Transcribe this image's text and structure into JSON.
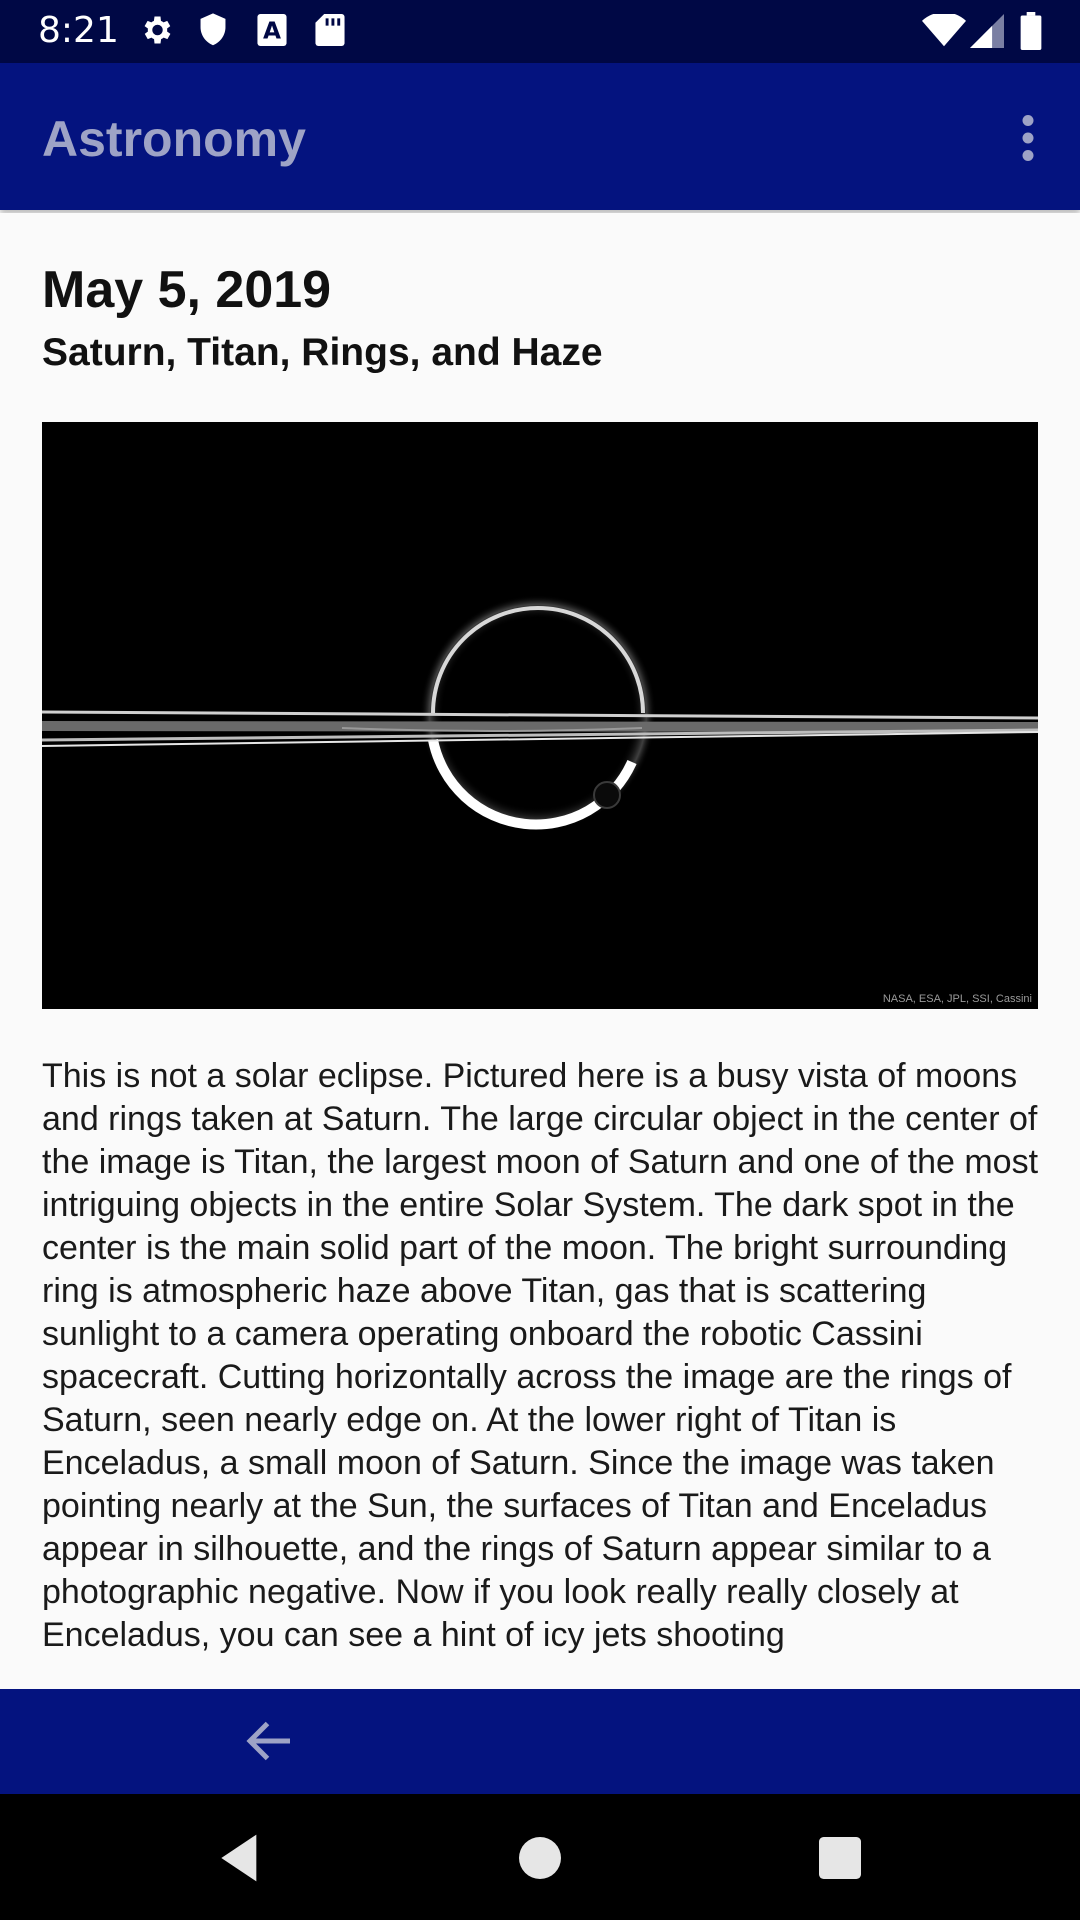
{
  "status_bar": {
    "time": "8:21",
    "left_icons": [
      "gear-icon",
      "shield-icon",
      "font-a-icon",
      "sd-card-icon"
    ],
    "right_icons": [
      "wifi-icon",
      "cellular-signal-icon",
      "battery-icon"
    ]
  },
  "app_bar": {
    "title": "Astronomy",
    "menu_icon": "more-vert-icon",
    "colors": {
      "background": "#04137f",
      "title": "#9ea3c6"
    }
  },
  "entry": {
    "date": "May 5, 2019",
    "title": "Saturn, Titan, Rings, and Haze",
    "image_credit": "NASA, ESA, JPL, SSI, Cassini",
    "description": "This is not a solar eclipse. Pictured here is a busy vista of moons and rings taken at Saturn. The large circular object in the center of the image is Titan, the largest moon of Saturn and one of the most intriguing objects in the entire Solar System. The dark spot in the center is the main solid part of the moon.  The bright surrounding ring is atmospheric haze above Titan, gas that is scattering sunlight to a camera operating onboard the robotic Cassini spacecraft. Cutting horizontally across the image are the rings of Saturn, seen nearly edge on.  At the lower right of Titan is Enceladus, a small moon of Saturn. Since the image was taken pointing nearly at the Sun, the surfaces of Titan and Enceladus appear in silhouette, and the rings of Saturn appear similar to a photographic negative. Now if you look really really closely at Enceladus, you can see a hint of icy jets shooting"
  },
  "bottom_bar": {
    "back_icon": "arrow-back-icon"
  },
  "nav_bar": {
    "buttons": [
      "nav-back-icon",
      "nav-home-icon",
      "nav-recents-icon"
    ]
  }
}
